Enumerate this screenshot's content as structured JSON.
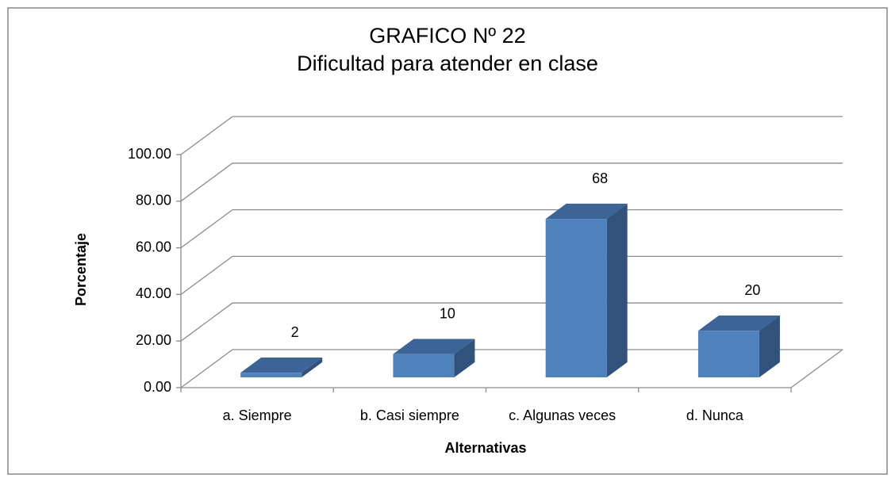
{
  "chart_data": {
    "type": "bar3d",
    "title": "GRAFICO Nº 22",
    "subtitle": "Dificultad para atender en clase",
    "xlabel": "Alternativas",
    "ylabel": "Porcentaje",
    "categories": [
      "a. Siempre",
      "b. Casi siempre",
      "c. Algunas veces",
      "d. Nunca"
    ],
    "values": [
      2,
      10,
      68,
      20
    ],
    "color": "#4f81bd",
    "ylim": [
      0,
      100
    ],
    "yticks": [
      {
        "value": 0,
        "label": "0.00"
      },
      {
        "value": 20,
        "label": "20.00"
      },
      {
        "value": 40,
        "label": "40.00"
      },
      {
        "value": 60,
        "label": "60.00"
      },
      {
        "value": 80,
        "label": "80.00"
      },
      {
        "value": 100,
        "label": "100.00"
      }
    ],
    "grid": true
  }
}
